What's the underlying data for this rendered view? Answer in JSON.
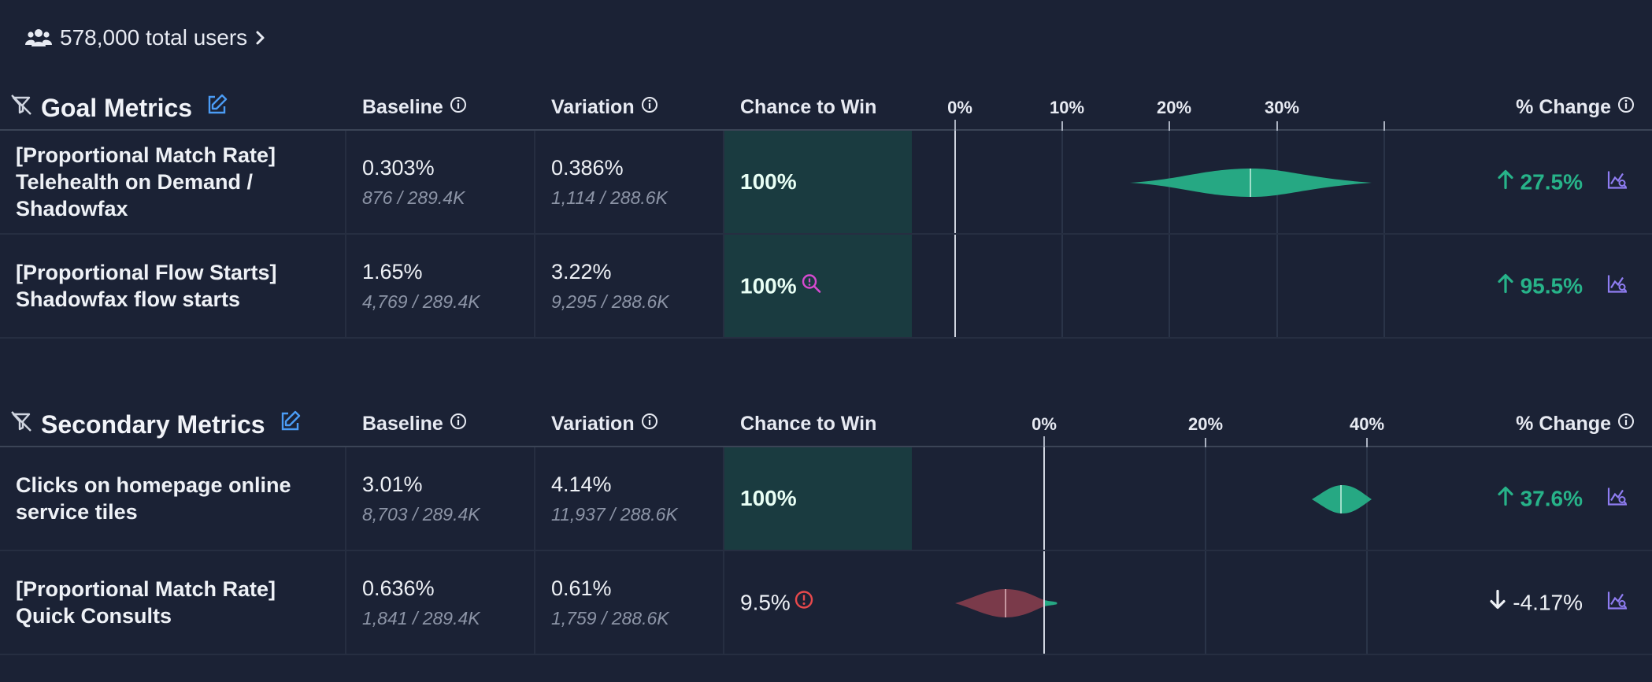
{
  "users": {
    "label": "578,000 total users"
  },
  "columns": {
    "baseline": "Baseline",
    "variation": "Variation",
    "chance": "Chance to Win",
    "change": "% Change"
  },
  "goal": {
    "title": "Goal Metrics",
    "axis_ticks": [
      "0%",
      "10%",
      "20%",
      "30%"
    ],
    "rows": [
      {
        "name": "[Proportional Match Rate] Telehealth on Demand / Shadowfax",
        "baseline": "0.303%",
        "baseline_sub": "876 / 289.4K",
        "variation": "0.386%",
        "variation_sub": "1,114 / 288.6K",
        "chance": "100%",
        "change": "27.5%"
      },
      {
        "name": "[Proportional Flow Starts] Shadowfax flow starts",
        "baseline": "1.65%",
        "baseline_sub": "4,769 / 289.4K",
        "variation": "3.22%",
        "variation_sub": "9,295 / 288.6K",
        "chance": "100%",
        "change": "95.5%"
      }
    ]
  },
  "secondary": {
    "title": "Secondary Metrics",
    "axis_ticks": [
      "0%",
      "20%",
      "40%"
    ],
    "rows": [
      {
        "name": "Clicks on homepage online service tiles",
        "baseline": "3.01%",
        "baseline_sub": "8,703 / 289.4K",
        "variation": "4.14%",
        "variation_sub": "11,937 / 288.6K",
        "chance": "100%",
        "change": "37.6%"
      },
      {
        "name": "[Proportional Match Rate] Quick Consults",
        "baseline": "0.636%",
        "baseline_sub": "1,841 / 289.4K",
        "variation": "0.61%",
        "variation_sub": "1,759 / 288.6K",
        "chance": "9.5%",
        "change": "-4.17%"
      }
    ]
  },
  "icons": {
    "users": "users-icon",
    "filter_off": "filter-off-icon",
    "edit": "edit-icon",
    "info": "info-icon",
    "chevron": "chevron-right-icon",
    "zoom": "zoom-search-icon",
    "alert": "alert-circle-icon",
    "graph": "chart-graph-icon",
    "arrow_up": "arrow-up-icon",
    "arrow_down": "arrow-down-icon"
  },
  "colors": {
    "background": "#1b2235",
    "win_cell": "#1a3b40",
    "positive": "#27b389",
    "negative": "#7a3a4a",
    "accent_blue": "#4b9cf5",
    "accent_purple": "#8f7df2",
    "zoom_magenta": "#d64ad0",
    "alert_red": "#e8494c"
  }
}
